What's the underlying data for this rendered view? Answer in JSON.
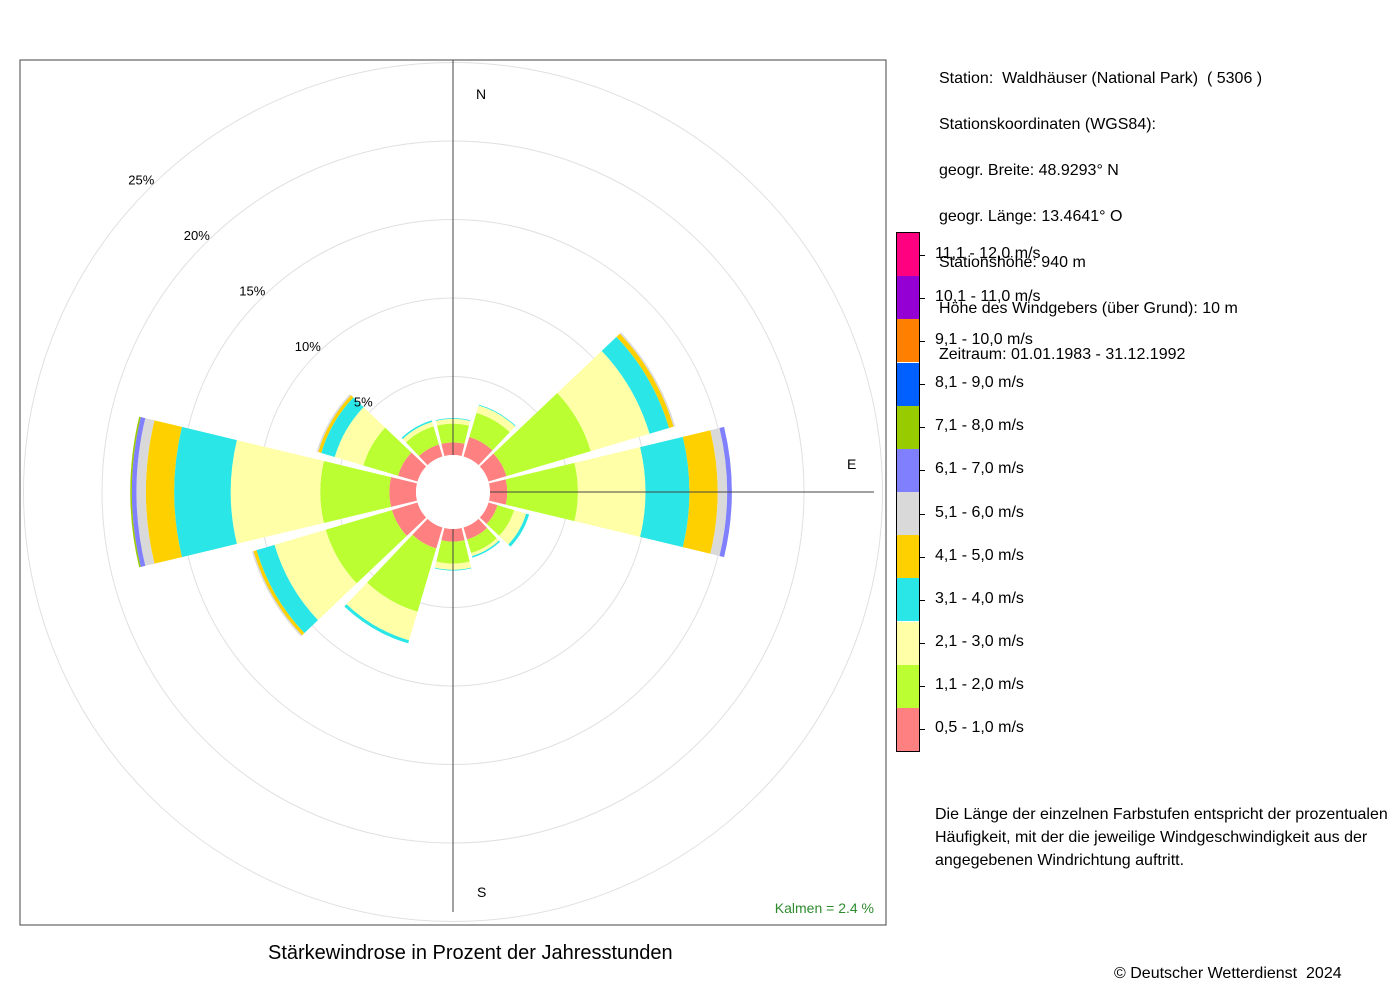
{
  "station": {
    "line1": "Station:  Waldhäuser (National Park)  ( 5306 )",
    "line2": "Stationskoordinaten (WGS84):",
    "line3": "geogr. Breite: 48.9293° N",
    "line4": "geogr. Länge: 13.4641° O",
    "line5": "Stationshöhe: 940 m",
    "line6": "Höhe des Windgebers (über Grund): 10 m",
    "line7": "Zeitraum: 01.01.1983 - 31.12.1992"
  },
  "legend": [
    {
      "label": "11,1 - 12,0 m/s",
      "color": "#ff0080"
    },
    {
      "label": "10,1 - 11,0 m/s",
      "color": "#9400d3"
    },
    {
      "label": "9,1 - 10,0 m/s",
      "color": "#ff8000"
    },
    {
      "label": "8,1 - 9,0 m/s",
      "color": "#0060ff"
    },
    {
      "label": "7,1 - 8,0 m/s",
      "color": "#99cc00"
    },
    {
      "label": "6,1 - 7,0 m/s",
      "color": "#8080ff"
    },
    {
      "label": "5,1 - 6,0 m/s",
      "color": "#d9d9d9"
    },
    {
      "label": "4,1 - 5,0 m/s",
      "color": "#ffd000"
    },
    {
      "label": "3,1 - 4,0 m/s",
      "color": "#2ae6e6"
    },
    {
      "label": "2,1 - 3,0 m/s",
      "color": "#ffffa8"
    },
    {
      "label": "1,1 - 2,0 m/s",
      "color": "#bbff33"
    },
    {
      "label": "0,5 - 1,0 m/s",
      "color": "#ff8080"
    }
  ],
  "note": "Die Länge der einzelnen Farbstufen entspricht der prozentualen Häufigkeit, mit der die jeweilige Windgeschwindigkeit aus der angegebenen Windrichtung auftritt.",
  "calm_label": "Kalmen  =  2.4 %",
  "title": "Stärkewindrose in Prozent der Jahresstunden",
  "copyright": "© Deutscher Wetterdienst  2024",
  "compass": {
    "n": "N",
    "e": "E",
    "s": "S"
  },
  "chart_data": {
    "type": "windrose",
    "title": "Stärkewindrose in Prozent der Jahresstunden",
    "unit": "%",
    "calm_percent": 2.4,
    "ring_labels": [
      "5%",
      "10%",
      "15%",
      "20%",
      "25%"
    ],
    "rings": [
      5,
      10,
      15,
      20,
      25
    ],
    "directions_deg": [
      0,
      30,
      60,
      90,
      120,
      150,
      180,
      210,
      240,
      270,
      300,
      330
    ],
    "speed_classes": [
      "0,5 - 1,0 m/s",
      "1,1 - 2,0 m/s",
      "2,1 - 3,0 m/s",
      "3,1 - 4,0 m/s",
      "4,1 - 5,0 m/s",
      "5,1 - 6,0 m/s",
      "6,1 - 7,0 m/s",
      "7,1 - 8,0 m/s",
      "8,1 - 9,0 m/s",
      "9,1 - 10,0 m/s",
      "10,1 - 11,0 m/s",
      "11,1 - 12,0 m/s"
    ],
    "frequencies": [
      {
        "dir": 0,
        "values": [
          0.8,
          1.2,
          0.3,
          0.05,
          0,
          0,
          0,
          0,
          0,
          0,
          0,
          0
        ]
      },
      {
        "dir": 30,
        "values": [
          1.3,
          1.6,
          0.5,
          0.05,
          0,
          0,
          0,
          0,
          0,
          0,
          0,
          0
        ]
      },
      {
        "dir": 60,
        "values": [
          1.2,
          5.6,
          3.9,
          1.3,
          0.3,
          0.1,
          0,
          0,
          0,
          0,
          0,
          0
        ]
      },
      {
        "dir": 90,
        "values": [
          1.1,
          4.5,
          4.3,
          2.8,
          1.8,
          0.6,
          0.3,
          0,
          0,
          0,
          0,
          0
        ]
      },
      {
        "dir": 120,
        "values": [
          0.6,
          1.1,
          0.8,
          0.2,
          0,
          0,
          0,
          0,
          0,
          0,
          0,
          0
        ]
      },
      {
        "dir": 150,
        "values": [
          0.8,
          0.9,
          0.2,
          0.1,
          0,
          0,
          0,
          0,
          0,
          0,
          0,
          0
        ]
      },
      {
        "dir": 180,
        "values": [
          0.8,
          1.4,
          0.4,
          0.05,
          0,
          0,
          0,
          0,
          0,
          0,
          0,
          0
        ]
      },
      {
        "dir": 210,
        "values": [
          1.4,
          4.2,
          1.9,
          0.2,
          0,
          0,
          0,
          0,
          0,
          0,
          0,
          0
        ]
      },
      {
        "dir": 240,
        "values": [
          1.7,
          4.4,
          3.4,
          1.2,
          0.2,
          0.1,
          0,
          0,
          0,
          0,
          0,
          0
        ]
      },
      {
        "dir": 270,
        "values": [
          1.7,
          4.4,
          5.7,
          3.6,
          1.8,
          0.6,
          0.3,
          0.1,
          0,
          0,
          0,
          0
        ]
      },
      {
        "dir": 300,
        "values": [
          1.3,
          2.3,
          1.9,
          0.9,
          0.2,
          0.1,
          0,
          0,
          0,
          0,
          0,
          0
        ]
      },
      {
        "dir": 330,
        "values": [
          0.8,
          1.2,
          0.3,
          0.1,
          0,
          0,
          0,
          0,
          0,
          0,
          0,
          0
        ]
      }
    ]
  }
}
